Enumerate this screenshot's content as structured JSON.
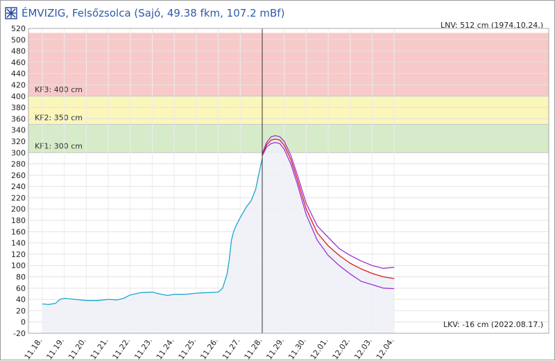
{
  "window": {
    "title": "ÉMVIZIG, Felsőzsolca (Sajó, 49.38 fkm, 107.2 mBf)",
    "logo_icon": "org-logo-icon"
  },
  "chart_data": {
    "type": "line",
    "ylim": [
      -20,
      520
    ],
    "y_ticks": [
      -20,
      0,
      20,
      40,
      60,
      80,
      100,
      120,
      140,
      160,
      180,
      200,
      220,
      240,
      260,
      280,
      300,
      320,
      340,
      360,
      380,
      400,
      420,
      440,
      460,
      480,
      500,
      520
    ],
    "x_ticks": [
      "11.18.",
      "11.19.",
      "11.20.",
      "11.21.",
      "11.22.",
      "11.23.",
      "11.24.",
      "11.25.",
      "11.26.",
      "11.27.",
      "11.28.",
      "11.29.",
      "11.30.",
      "12.01.",
      "12.02.",
      "12.03.",
      "12.04."
    ],
    "now_marker": "11.28.",
    "grid": true,
    "zones": [
      {
        "label": "KF1: 300 cm",
        "from": 300,
        "to": 350,
        "color": "#d6ecc9"
      },
      {
        "label": "KF2: 350 cm",
        "from": 350,
        "to": 400,
        "color": "#fbf6b9"
      },
      {
        "label": "KF3: 400 cm",
        "from": 400,
        "to": 512,
        "color": "#f8c9c9"
      }
    ],
    "lnv_label": "LNV: 512 cm (1974.10.24.)",
    "lkv_label": "LKV: -16 cm (2022.08.17.)",
    "series": [
      {
        "role": "observed",
        "color": "#1aa6cf",
        "x": [
          0,
          0.3,
          0.6,
          0.8,
          1.0,
          1.5,
          2.0,
          2.5,
          3.0,
          3.4,
          3.7,
          4.0,
          4.5,
          5.0,
          5.3,
          5.7,
          6.0,
          6.5,
          7.0,
          7.5,
          8.0,
          8.2,
          8.4,
          8.5,
          8.6,
          8.7,
          8.8,
          9.0,
          9.3,
          9.5,
          9.7,
          10.0
        ],
        "y": [
          32,
          31,
          33,
          40,
          42,
          40,
          38,
          38,
          40,
          39,
          42,
          48,
          52,
          53,
          50,
          47,
          49,
          49,
          51,
          52,
          53,
          60,
          85,
          110,
          145,
          160,
          170,
          185,
          205,
          215,
          235,
          290
        ]
      },
      {
        "role": "forecast-upper",
        "color": "#9b30d9",
        "x": [
          10.0,
          10.2,
          10.4,
          10.6,
          10.8,
          11.0,
          11.3,
          11.6,
          12.0,
          12.5,
          13.0,
          13.5,
          14.0,
          14.5,
          15.0,
          15.5,
          16.0
        ],
        "y": [
          298,
          318,
          328,
          330,
          328,
          320,
          295,
          260,
          210,
          170,
          150,
          130,
          118,
          108,
          100,
          95,
          97
        ]
      },
      {
        "role": "forecast-mean",
        "color": "#e01a1a",
        "x": [
          10.0,
          10.2,
          10.4,
          10.6,
          10.8,
          11.0,
          11.3,
          11.6,
          12.0,
          12.5,
          13.0,
          13.5,
          14.0,
          14.5,
          15.0,
          15.5,
          16.0
        ],
        "y": [
          296,
          314,
          322,
          324,
          322,
          313,
          288,
          252,
          200,
          158,
          135,
          118,
          104,
          94,
          86,
          80,
          77
        ]
      },
      {
        "role": "forecast-lower",
        "color": "#9b30d9",
        "x": [
          10.0,
          10.2,
          10.4,
          10.6,
          10.8,
          11.0,
          11.3,
          11.6,
          12.0,
          12.5,
          13.0,
          13.5,
          14.0,
          14.5,
          15.0,
          15.5,
          16.0
        ],
        "y": [
          294,
          310,
          316,
          318,
          316,
          306,
          280,
          244,
          190,
          145,
          118,
          100,
          85,
          72,
          66,
          60,
          59
        ]
      }
    ]
  }
}
